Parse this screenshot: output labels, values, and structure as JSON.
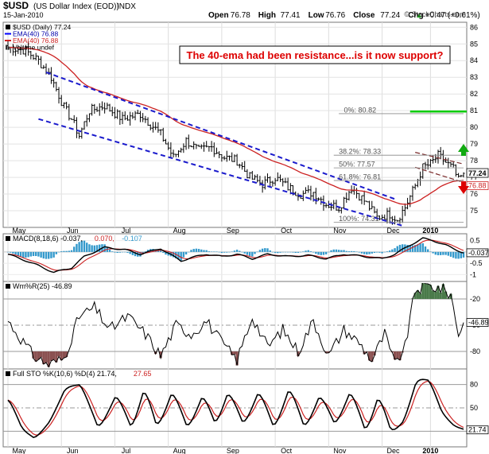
{
  "header": {
    "symbol": "$USD",
    "name": "(US Dollar Index (EOD))",
    "exchange": "INDX",
    "date": "15-Jan-2010",
    "ohlc": [
      {
        "label": "Open",
        "value": "76.78"
      },
      {
        "label": "High",
        "value": "77.41"
      },
      {
        "label": "Low",
        "value": "76.76"
      },
      {
        "label": "Close",
        "value": "77.24"
      },
      {
        "label": "Chg",
        "value": "+0.47 (+0.61%)"
      }
    ],
    "credit": "© StockCharts.com",
    "arrow_up": "▲"
  },
  "annotation": "The 40-ema had been resistance...is it now support?",
  "colors": {
    "price": "#000000",
    "ema": "#cc2222",
    "channel": "#1a1acc",
    "fib_line": "#00cc00",
    "annotation": "#dd0000",
    "up_arrow": "#11aa11",
    "down_arrow": "#dd0000",
    "macd_hist": "#3399cc",
    "wmr_fill_top": "#4a7a4a",
    "wmr_fill_bottom": "#8a5050"
  },
  "chart_data": [
    {
      "type": "line",
      "panel": "price",
      "legend": [
        {
          "marker": "block",
          "text": "$USD (Daily) 77.24",
          "color": "#000000"
        },
        {
          "marker": "line",
          "text": "EMA(40) 76.88",
          "color": "#0000ff"
        },
        {
          "marker": "line",
          "text": "EMA(40) 76.88",
          "color": "#cc2222"
        },
        {
          "marker": "bars",
          "text": "Volume undef",
          "color": "#000000"
        }
      ],
      "x_labels": [
        "May",
        "Jun",
        "Jul",
        "Aug",
        "Sep",
        "Oct",
        "Nov",
        "Dec",
        "2010"
      ],
      "y_ticks": [
        75,
        76,
        77,
        78,
        79,
        80,
        81,
        82,
        83,
        84,
        85,
        86
      ],
      "ylim": [
        74.0,
        86.3
      ],
      "n_points": 180,
      "anchors_x": [
        0,
        7,
        12,
        17,
        22,
        25,
        28,
        32,
        38,
        45,
        52,
        60,
        65,
        70,
        75,
        80,
        85,
        90,
        95,
        100,
        105,
        110,
        115,
        120,
        125,
        130,
        135,
        140,
        145,
        150,
        153,
        156,
        160,
        163,
        166,
        169,
        172,
        175,
        177,
        179
      ],
      "anchors_y": [
        84.8,
        84.6,
        84.0,
        83.0,
        81.2,
        80.5,
        79.5,
        81.0,
        81.3,
        80.5,
        80.8,
        79.6,
        78.2,
        79.2,
        78.6,
        78.8,
        78.2,
        78.0,
        77.0,
        76.6,
        77.0,
        76.4,
        76.0,
        76.1,
        75.4,
        75.2,
        76.4,
        75.6,
        74.6,
        74.8,
        74.5,
        75.2,
        76.5,
        77.6,
        77.8,
        78.3,
        77.9,
        77.5,
        76.8,
        77.24
      ],
      "series": [
        {
          "name": "$USD (Daily)",
          "last": "77.24"
        },
        {
          "name": "EMA(40)",
          "last": "76.88"
        }
      ],
      "last_price_tag": "77.24",
      "ema_tag": "76.88",
      "fib_levels": [
        {
          "label": "0%: 80.82",
          "value": 80.82
        },
        {
          "label": "38.2%: 78.33",
          "value": 78.33
        },
        {
          "label": "50%: 77.57",
          "value": 77.57
        },
        {
          "label": "61.8%: 76.81",
          "value": 76.81
        },
        {
          "label": "100%: 74.31",
          "value": 74.31
        }
      ],
      "channel_upper": {
        "from": [
          15,
          83.3
        ],
        "to": [
          152,
          75.7
        ]
      },
      "channel_lower": {
        "from": [
          12,
          80.5
        ],
        "to": [
          155,
          74.1
        ]
      },
      "flag_upper": {
        "from": [
          160,
          78.5
        ],
        "to": [
          179,
          77.8
        ]
      },
      "flag_lower": {
        "from": [
          160,
          77.6
        ],
        "to": [
          179,
          76.7
        ]
      },
      "breakout_line": {
        "value": 80.95,
        "from": 158,
        "to": 179
      }
    },
    {
      "type": "line",
      "panel": "macd",
      "label": "MACD(8,18,6) -0.037, 0.070, -0.107",
      "label_parts": [
        {
          "text": "MACD(8,18,6) -0.037, ",
          "color": "#000000"
        },
        {
          "text": "0.070, ",
          "color": "#cc2222"
        },
        {
          "text": "-0.107",
          "color": "#3399cc"
        }
      ],
      "y_ticks": [
        0.5,
        0.0,
        -0.5,
        -1.0
      ],
      "ylim": [
        -1.3,
        0.8
      ],
      "anchors_x": [
        0,
        5,
        12,
        18,
        25,
        30,
        38,
        46,
        52,
        60,
        68,
        72,
        78,
        84,
        90,
        96,
        102,
        110,
        118,
        125,
        132,
        140,
        147,
        152,
        158,
        163,
        167,
        172,
        176,
        179
      ],
      "anchors_y": [
        -0.1,
        -0.3,
        -0.6,
        -0.9,
        -0.7,
        -0.2,
        0.2,
        0.1,
        -0.1,
        0.15,
        -0.4,
        -0.25,
        -0.1,
        -0.2,
        -0.1,
        -0.3,
        -0.1,
        -0.2,
        -0.15,
        -0.3,
        -0.1,
        -0.2,
        -0.3,
        -0.1,
        0.3,
        0.6,
        0.5,
        0.3,
        0.1,
        -0.037
      ],
      "last_tag": "-0.037"
    },
    {
      "type": "line",
      "panel": "wmr",
      "label": "Wm%R(25) -46.89",
      "y_ticks": [
        -20,
        -50,
        -80
      ],
      "ylim": [
        -100,
        0
      ],
      "anchors_x": [
        0,
        5,
        10,
        16,
        22,
        28,
        34,
        40,
        47,
        54,
        60,
        66,
        72,
        78,
        84,
        90,
        96,
        102,
        108,
        114,
        120,
        126,
        132,
        138,
        143,
        148,
        152,
        156,
        160,
        165,
        170,
        174,
        177,
        179
      ],
      "anchors_y": [
        -45,
        -65,
        -85,
        -95,
        -88,
        -40,
        -30,
        -55,
        -40,
        -60,
        -85,
        -50,
        -60,
        -45,
        -70,
        -90,
        -40,
        -75,
        -55,
        -80,
        -45,
        -85,
        -55,
        -70,
        -90,
        -60,
        -95,
        -75,
        -10,
        -5,
        -8,
        -15,
        -60,
        -46.89
      ],
      "last_tag": "-46.89"
    },
    {
      "type": "line",
      "panel": "sto",
      "label": "Full STO %K(10,6) %D(4) 21.74, 27.65",
      "label_parts": [
        {
          "text": "Full STO %K(10,6) %D(4) 21.74, ",
          "color": "#000000"
        },
        {
          "text": "27.65",
          "color": "#cc2222"
        }
      ],
      "y_ticks": [
        80,
        50,
        20
      ],
      "ylim": [
        0,
        100
      ],
      "anchors_x": [
        0,
        5,
        10,
        16,
        22,
        28,
        35,
        42,
        48,
        53,
        58,
        64,
        70,
        76,
        81,
        86,
        92,
        98,
        104,
        110,
        116,
        122,
        128,
        134,
        140,
        145,
        150,
        155,
        160,
        165,
        170,
        175,
        179
      ],
      "anchors_y": [
        60,
        20,
        10,
        35,
        78,
        80,
        20,
        70,
        20,
        80,
        20,
        75,
        20,
        70,
        25,
        75,
        25,
        75,
        20,
        80,
        20,
        70,
        25,
        75,
        15,
        70,
        15,
        35,
        90,
        85,
        40,
        25,
        21.74
      ],
      "last_tag": "21.74"
    }
  ]
}
